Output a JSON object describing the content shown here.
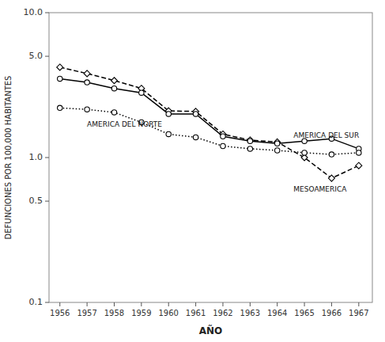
{
  "chart_data": {
    "type": "line",
    "x": [
      1956,
      1957,
      1958,
      1959,
      1960,
      1961,
      1962,
      1963,
      1964,
      1965,
      1966,
      1967
    ],
    "series": [
      {
        "color": "#000000",
        "line_style": "dashed",
        "marker": "diamond",
        "values": [
          4.2,
          3.8,
          3.4,
          3.0,
          2.1,
          2.08,
          1.45,
          1.32,
          1.28,
          1.0,
          0.72,
          0.88
        ]
      },
      {
        "color": "#000000",
        "line_style": "solid",
        "marker": "circle",
        "values": [
          3.5,
          3.3,
          3.0,
          2.8,
          2.0,
          2.0,
          1.4,
          1.3,
          1.25,
          1.3,
          1.35,
          1.15
        ]
      },
      {
        "color": "#000000",
        "line_style": "dotted",
        "marker": "circle",
        "values": [
          2.2,
          2.15,
          2.05,
          1.75,
          1.45,
          1.38,
          1.2,
          1.15,
          1.12,
          1.08,
          1.05,
          1.08
        ]
      }
    ],
    "xlabel": "AÑO",
    "ylabel": "DEFUNCIONES POR 100,000 HABITANTES",
    "xlim": [
      1955.6,
      1967.5
    ],
    "xticks": [
      1956,
      1957,
      1958,
      1959,
      1960,
      1961,
      1962,
      1963,
      1964,
      1965,
      1966,
      1967
    ],
    "ylim": [
      0.1,
      10.0
    ],
    "yticks": [
      0.1,
      0.5,
      {
        "value": 1.0,
        "label": "1.0"
      },
      {
        "value": 5.0,
        "label": "5.0"
      },
      {
        "value": 10.0,
        "label": "10.0"
      }
    ],
    "log": "y",
    "grid": false,
    "annotations": [
      {
        "text": "AMERICA DEL NORTE",
        "x": 1957.0,
        "y": 1.68
      },
      {
        "text": "AMERICA DEL SUR",
        "x": 1964.6,
        "y": 1.42
      },
      {
        "text": "MESOAMERICA",
        "x": 1964.6,
        "y": 0.6
      }
    ]
  }
}
